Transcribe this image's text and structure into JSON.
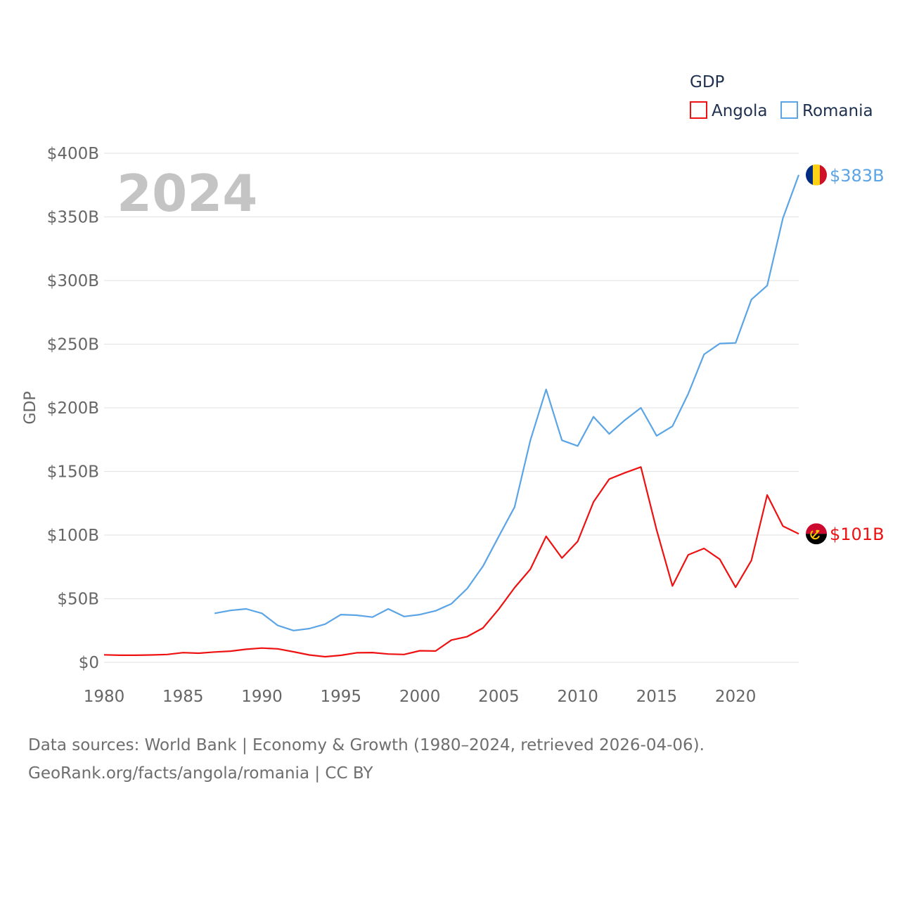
{
  "chart_data": {
    "type": "line",
    "title": "GDP",
    "ylabel": "GDP",
    "xlabel": "",
    "highlight_year": "2024",
    "xlim": [
      1980,
      2024
    ],
    "ylim": [
      0,
      400
    ],
    "unit": "billion USD",
    "grid": true,
    "legend": {
      "title": "GDP",
      "placement": "top-right"
    },
    "x_ticks": [
      1980,
      1985,
      1990,
      1995,
      2000,
      2005,
      2010,
      2015,
      2020
    ],
    "x_tick_labels": [
      "1980",
      "1985",
      "1990",
      "1995",
      "2000",
      "2005",
      "2010",
      "2015",
      "2020"
    ],
    "y_ticks": [
      0,
      50,
      100,
      150,
      200,
      250,
      300,
      350,
      400
    ],
    "y_tick_labels": [
      "$0",
      "$50B",
      "$100B",
      "$150B",
      "$200B",
      "$250B",
      "$300B",
      "$350B",
      "$400B"
    ],
    "series": [
      {
        "name": "Angola",
        "color": "#ee1111",
        "end_label": "$101B",
        "flag": "angola-flag",
        "x": [
          1980,
          1981,
          1982,
          1983,
          1984,
          1985,
          1986,
          1987,
          1988,
          1989,
          1990,
          1991,
          1992,
          1993,
          1994,
          1995,
          1996,
          1997,
          1998,
          1999,
          2000,
          2001,
          2002,
          2003,
          2004,
          2005,
          2006,
          2007,
          2008,
          2009,
          2010,
          2011,
          2012,
          2013,
          2014,
          2015,
          2016,
          2017,
          2018,
          2019,
          2020,
          2021,
          2022,
          2023,
          2024
        ],
        "values": [
          5.9,
          5.6,
          5.6,
          5.8,
          6.2,
          7.6,
          7.2,
          8.1,
          8.8,
          10.3,
          11.2,
          10.6,
          8.3,
          5.8,
          4.4,
          5.5,
          7.5,
          7.7,
          6.5,
          6.2,
          9.1,
          8.9,
          17.5,
          20.2,
          27.0,
          41.8,
          58.6,
          73.2,
          99.0,
          82.0,
          95.0,
          126.0,
          144.0,
          149.0,
          153.5,
          104.0,
          60.0,
          84.5,
          89.5,
          81.0,
          59.0,
          80.0,
          131.5,
          107.0,
          101.0
        ]
      },
      {
        "name": "Romania",
        "color": "#5ba4e5",
        "end_label": "$383B",
        "flag": "romania-flag",
        "x": [
          1987,
          1988,
          1989,
          1990,
          1991,
          1992,
          1993,
          1994,
          1995,
          1996,
          1997,
          1998,
          1999,
          2000,
          2001,
          2002,
          2003,
          2004,
          2005,
          2006,
          2007,
          2008,
          2009,
          2010,
          2011,
          2012,
          2013,
          2014,
          2015,
          2016,
          2017,
          2018,
          2019,
          2020,
          2021,
          2022,
          2023,
          2024
        ],
        "values": [
          38.5,
          40.8,
          42.0,
          38.5,
          29.0,
          25.0,
          26.5,
          30.0,
          37.5,
          37.0,
          35.5,
          42.0,
          36.0,
          37.5,
          40.5,
          46.0,
          58.0,
          75.5,
          99.0,
          122.0,
          174.5,
          214.5,
          174.5,
          170.0,
          193.0,
          179.5,
          190.5,
          200.0,
          178.0,
          185.5,
          211.0,
          242.0,
          250.5,
          251.0,
          285.0,
          296.0,
          349.0,
          383.0
        ]
      }
    ]
  },
  "footer": {
    "line1": "Data sources: World Bank | Economy & Growth (1980–2024, retrieved 2026-04-06).",
    "line2": "GeoRank.org/facts/angola/romania | CC BY"
  }
}
